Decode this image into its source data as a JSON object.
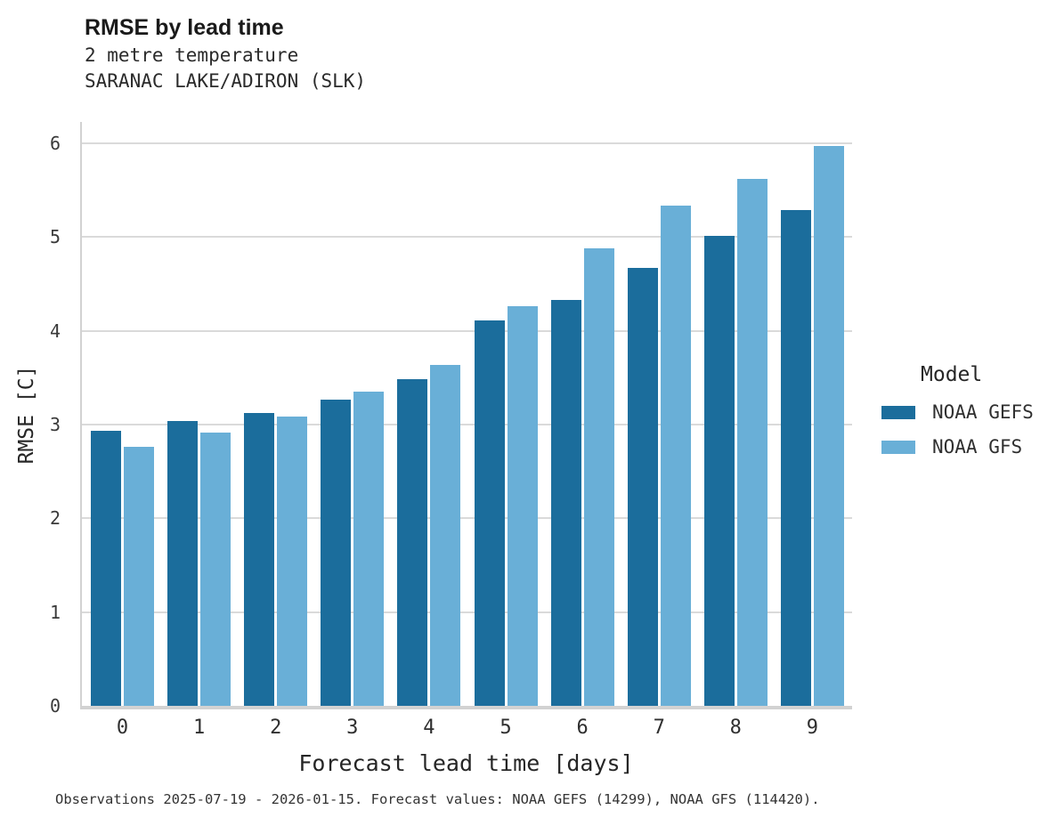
{
  "header": {
    "title": "RMSE by lead time",
    "subtitle_line1": "2 metre temperature",
    "subtitle_line2": "SARANAC LAKE/ADIRON (SLK)"
  },
  "footer": {
    "caption": "Observations 2025-07-19 - 2026-01-15. Forecast values: NOAA GEFS (14299), NOAA GFS (114420)."
  },
  "colors": {
    "noaa_gefs": "#1b6d9c",
    "noaa_gfs": "#69afd7",
    "gridline": "#dadada",
    "axis": "#d2d2d2"
  },
  "chart_data": {
    "type": "bar",
    "title": "RMSE by lead time",
    "subtitle": [
      "2 metre temperature",
      "SARANAC LAKE/ADIRON (SLK)"
    ],
    "categories": [
      "0",
      "1",
      "2",
      "3",
      "4",
      "5",
      "6",
      "7",
      "8",
      "9"
    ],
    "series": [
      {
        "name": "NOAA GEFS",
        "color": "#1b6d9c",
        "values": [
          2.93,
          3.04,
          3.12,
          3.27,
          3.48,
          4.11,
          4.33,
          4.67,
          5.01,
          5.29
        ]
      },
      {
        "name": "NOAA GFS",
        "color": "#69afd7",
        "values": [
          2.76,
          2.91,
          3.09,
          3.35,
          3.64,
          4.26,
          4.88,
          5.34,
          5.62,
          5.97
        ]
      }
    ],
    "xlabel": "Forecast lead time [days]",
    "ylabel": "RMSE [C]",
    "ylim": [
      0,
      6
    ],
    "yticks": [
      0,
      1,
      2,
      3,
      4,
      5,
      6
    ],
    "grid": true,
    "legend_title": "Model",
    "legend_position": "right",
    "caption": "Observations 2025-07-19 - 2026-01-15. Forecast values: NOAA GEFS (14299), NOAA GFS (114420)."
  }
}
